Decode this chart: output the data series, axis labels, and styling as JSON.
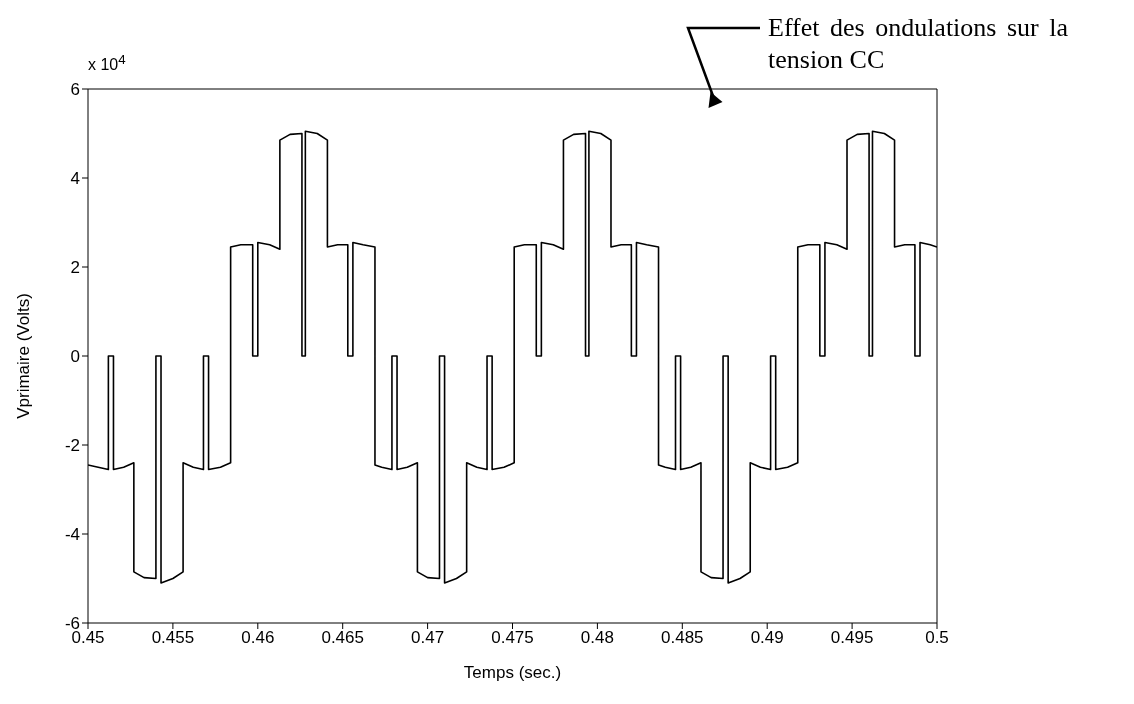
{
  "chart_data": {
    "type": "line",
    "xlabel": "Temps (sec.)",
    "ylabel": "Vprimaire (Volts)",
    "xlim": [
      0.45,
      0.5
    ],
    "xticks": [
      0.45,
      0.455,
      0.46,
      0.465,
      0.47,
      0.475,
      0.48,
      0.485,
      0.49,
      0.495,
      0.5
    ],
    "ylim": [
      -6,
      6
    ],
    "yticks": [
      -6,
      -4,
      -2,
      0,
      2,
      4,
      6
    ],
    "marker": "none",
    "line_style": "solid",
    "annotations": [
      "x 10$^{4}$",
      "Effet des ondulations sur la tension CC"
    ],
    "series": [
      {
        "color": "#000000",
        "x": [
          0.45,
          0.4506,
          0.4512,
          0.4512,
          0.4515,
          0.4515,
          0.4521,
          0.4527,
          0.4527,
          0.4533,
          0.454,
          0.454,
          0.4543,
          0.4543,
          0.455,
          0.4556,
          0.4556,
          0.4562,
          0.4568,
          0.4568,
          0.4571,
          0.4571,
          0.4578,
          0.4584,
          0.4584,
          0.459,
          0.4597,
          0.4597,
          0.46,
          0.46,
          0.4607,
          0.4613,
          0.4613,
          0.4619,
          0.4626,
          0.4626,
          0.4628,
          0.4628,
          0.4635,
          0.4641,
          0.4641,
          0.4647,
          0.4653,
          0.4653,
          0.4656,
          0.4656,
          0.4662,
          0.4669,
          0.4669,
          0.4673,
          0.4679,
          0.4679,
          0.4682,
          0.4682,
          0.4688,
          0.4694,
          0.4694,
          0.47,
          0.4707,
          0.4707,
          0.471,
          0.471,
          0.4717,
          0.4723,
          0.4723,
          0.4729,
          0.4735,
          0.4735,
          0.4738,
          0.4738,
          0.4745,
          0.4751,
          0.4751,
          0.4757,
          0.4764,
          0.4764,
          0.4767,
          0.4767,
          0.4774,
          0.478,
          0.478,
          0.4786,
          0.4793,
          0.4793,
          0.4795,
          0.4795,
          0.4802,
          0.4808,
          0.4808,
          0.4814,
          0.482,
          0.482,
          0.4823,
          0.4823,
          0.4829,
          0.4836,
          0.4836,
          0.484,
          0.4846,
          0.4846,
          0.4849,
          0.4849,
          0.4855,
          0.4861,
          0.4861,
          0.4867,
          0.4874,
          0.4874,
          0.4877,
          0.4877,
          0.4884,
          0.489,
          0.489,
          0.4896,
          0.4902,
          0.4902,
          0.4905,
          0.4905,
          0.4912,
          0.4918,
          0.4918,
          0.4924,
          0.4931,
          0.4931,
          0.4934,
          0.4934,
          0.4941,
          0.4947,
          0.4947,
          0.4953,
          0.496,
          0.496,
          0.4962,
          0.4962,
          0.4969,
          0.4975,
          0.4975,
          0.4981,
          0.4987,
          0.4987,
          0.499,
          0.499,
          0.4996,
          0.5
        ],
        "values": [
          -2.45,
          -2.5,
          -2.55,
          0,
          0,
          -2.55,
          -2.5,
          -2.4,
          -4.85,
          -4.98,
          -5,
          0,
          0,
          -5.1,
          -5,
          -4.85,
          -2.4,
          -2.5,
          -2.55,
          0,
          0,
          -2.55,
          -2.5,
          -2.4,
          2.45,
          2.5,
          2.5,
          0,
          0,
          2.55,
          2.5,
          2.4,
          4.85,
          4.98,
          5,
          0,
          0,
          5.05,
          5,
          4.85,
          2.45,
          2.5,
          2.5,
          0,
          0,
          2.55,
          2.5,
          2.45,
          -2.45,
          -2.5,
          -2.55,
          0,
          0,
          -2.55,
          -2.5,
          -2.4,
          -4.85,
          -4.98,
          -5,
          0,
          0,
          -5.1,
          -5,
          -4.85,
          -2.4,
          -2.5,
          -2.55,
          0,
          0,
          -2.55,
          -2.5,
          -2.4,
          2.45,
          2.5,
          2.5,
          0,
          0,
          2.55,
          2.5,
          2.4,
          4.85,
          4.98,
          5,
          0,
          0,
          5.05,
          5,
          4.85,
          2.45,
          2.5,
          2.5,
          0,
          0,
          2.55,
          2.5,
          2.45,
          -2.45,
          -2.5,
          -2.55,
          0,
          0,
          -2.55,
          -2.5,
          -2.4,
          -4.85,
          -4.98,
          -5,
          0,
          0,
          -5.1,
          -5,
          -4.85,
          -2.4,
          -2.5,
          -2.55,
          0,
          0,
          -2.55,
          -2.5,
          -2.4,
          2.45,
          2.5,
          2.5,
          0,
          0,
          2.55,
          2.5,
          2.4,
          4.85,
          4.98,
          5,
          0,
          0,
          5.05,
          5,
          4.85,
          2.45,
          2.5,
          2.5,
          0,
          0,
          2.55,
          2.5,
          2.45
        ]
      }
    ]
  }
}
